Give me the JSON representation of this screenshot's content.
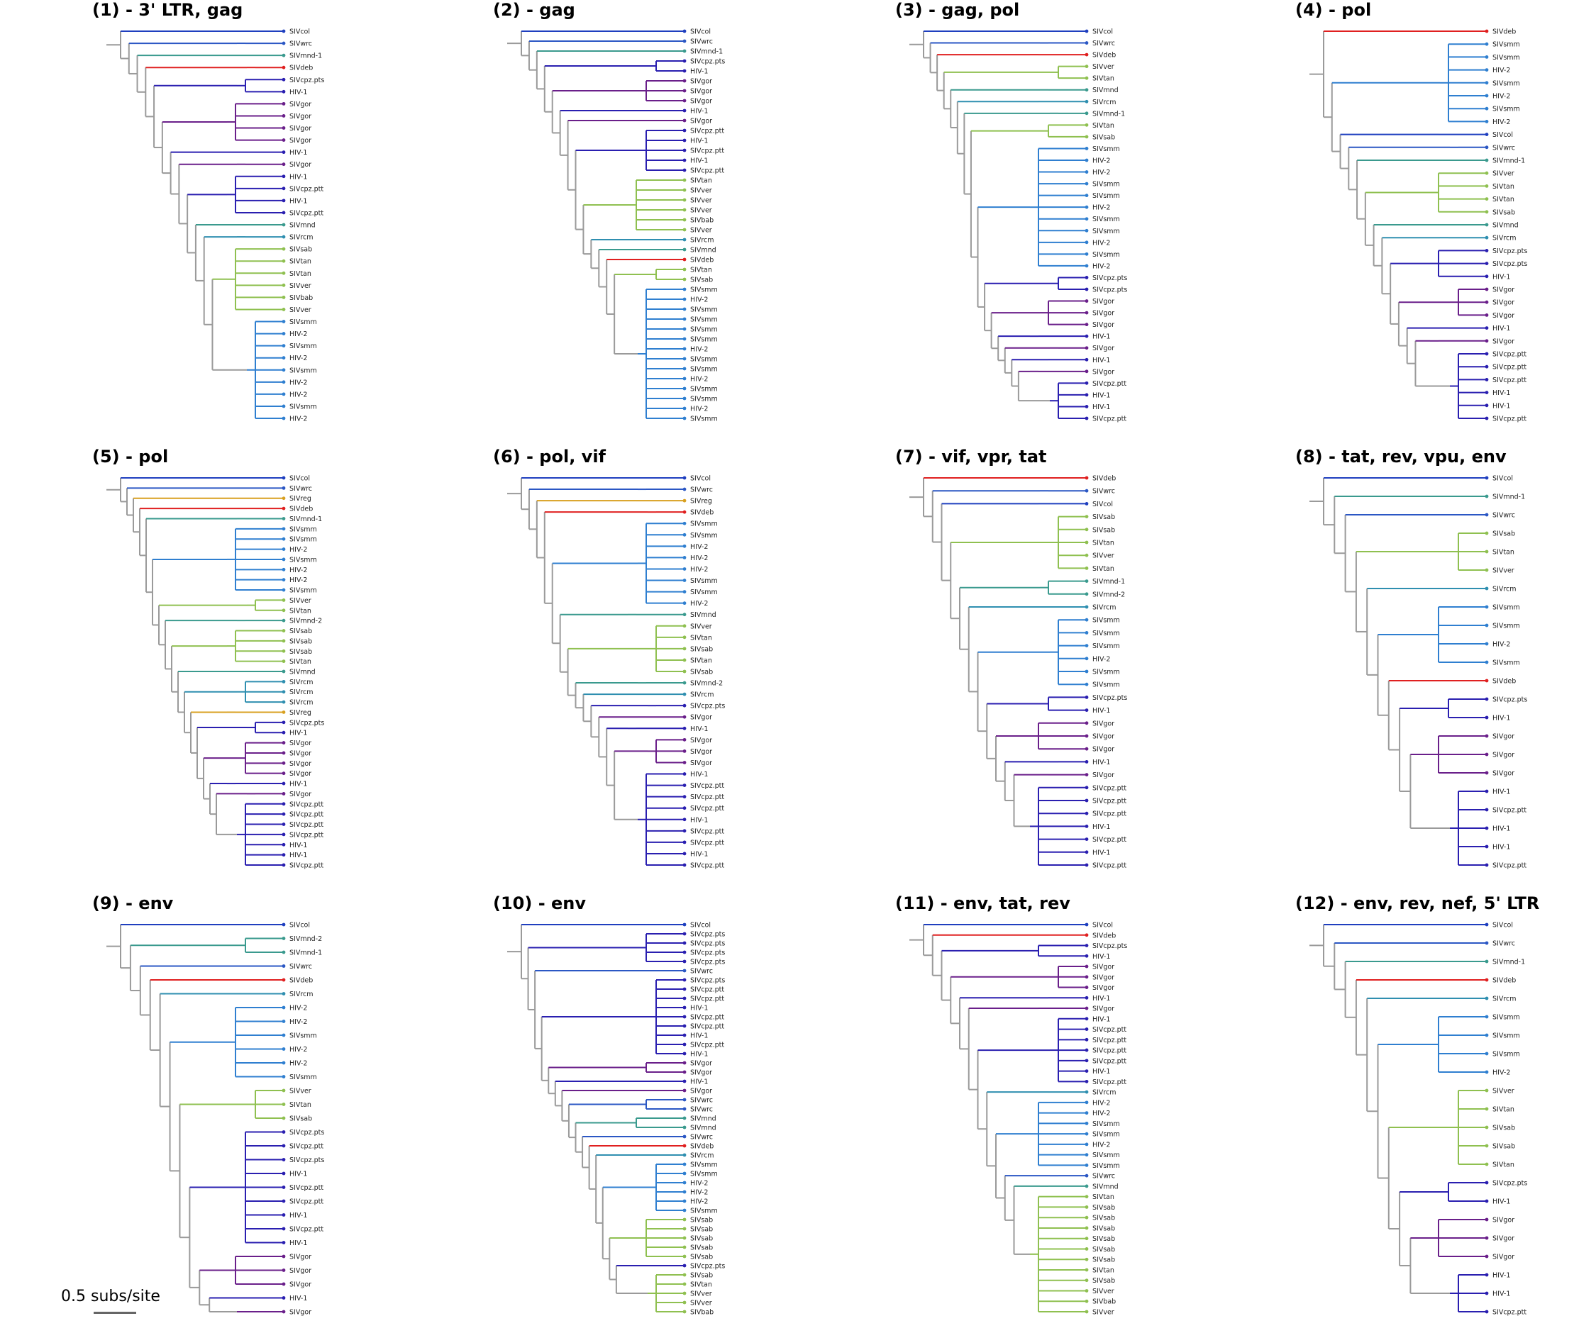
{
  "colors": {
    "SIVcol": "#1f3fbf",
    "SIVwrc": "#2b57c4",
    "SIVmnd": "#3a9a8e",
    "SIVdeb": "#e02020",
    "SIVreg": "#d8a020",
    "SIVver": "#8fc050",
    "SIVtan": "#8fc050",
    "SIVsab": "#8fc050",
    "SIVbab": "#8fc050",
    "SIVrcm": "#2f8fb0",
    "SIVsmm": "#2f7fd0",
    "HIV-2": "#2f7fd0",
    "SIVgor": "#6a1f8a",
    "HIV-1": "#2a1fb0",
    "SIVcpz": "#2a1fb0",
    "backbone": "#9a9a9a"
  },
  "panels": [
    {
      "title": "(1) - 3' LTR, gag",
      "leaves": [
        "SIVcol",
        "SIVwrc",
        "SIVmnd-1",
        "SIVdeb",
        "SIVcpz.pts",
        "HIV-1",
        "SIVgor",
        "SIVgor",
        "SIVgor",
        "SIVgor",
        "HIV-1",
        "SIVgor",
        "HIV-1",
        "SIVcpz.ptt",
        "HIV-1",
        "SIVcpz.ptt",
        "SIVmnd",
        "SIVrcm",
        "SIVsab",
        "SIVtan",
        "SIVtan",
        "SIVver",
        "SIVbab",
        "SIVver",
        "SIVsmm",
        "HIV-2",
        "SIVsmm",
        "HIV-2",
        "SIVsmm",
        "HIV-2",
        "HIV-2",
        "SIVsmm",
        "HIV-2"
      ]
    },
    {
      "title": "(2) - gag",
      "leaves": [
        "SIVcol",
        "SIVwrc",
        "SIVmnd-1",
        "SIVcpz.pts",
        "HIV-1",
        "SIVgor",
        "SIVgor",
        "SIVgor",
        "HIV-1",
        "SIVgor",
        "SIVcpz.ptt",
        "HIV-1",
        "SIVcpz.ptt",
        "HIV-1",
        "SIVcpz.ptt",
        "SIVtan",
        "SIVver",
        "SIVver",
        "SIVver",
        "SIVbab",
        "SIVver",
        "SIVrcm",
        "SIVmnd",
        "SIVdeb",
        "SIVtan",
        "SIVsab",
        "SIVsmm",
        "HIV-2",
        "SIVsmm",
        "SIVsmm",
        "SIVsmm",
        "SIVsmm",
        "HIV-2",
        "SIVsmm",
        "SIVsmm",
        "HIV-2",
        "SIVsmm",
        "SIVsmm",
        "HIV-2",
        "SIVsmm"
      ]
    },
    {
      "title": "(3) - gag, pol",
      "leaves": [
        "SIVcol",
        "SIVwrc",
        "SIVdeb",
        "SIVver",
        "SIVtan",
        "SIVmnd",
        "SIVrcm",
        "SIVmnd-1",
        "SIVtan",
        "SIVsab",
        "SIVsmm",
        "HIV-2",
        "HIV-2",
        "SIVsmm",
        "SIVsmm",
        "HIV-2",
        "SIVsmm",
        "SIVsmm",
        "HIV-2",
        "SIVsmm",
        "HIV-2",
        "SIVcpz.pts",
        "SIVcpz.pts",
        "SIVgor",
        "SIVgor",
        "SIVgor",
        "HIV-1",
        "SIVgor",
        "HIV-1",
        "SIVgor",
        "SIVcpz.ptt",
        "HIV-1",
        "HIV-1",
        "SIVcpz.ptt"
      ]
    },
    {
      "title": "(4) - pol",
      "leaves": [
        "SIVdeb",
        "SIVsmm",
        "SIVsmm",
        "HIV-2",
        "SIVsmm",
        "HIV-2",
        "SIVsmm",
        "HIV-2",
        "SIVcol",
        "SIVwrc",
        "SIVmnd-1",
        "SIVver",
        "SIVtan",
        "SIVtan",
        "SIVsab",
        "SIVmnd",
        "SIVrcm",
        "SIVcpz.pts",
        "SIVcpz.pts",
        "HIV-1",
        "SIVgor",
        "SIVgor",
        "SIVgor",
        "HIV-1",
        "SIVgor",
        "SIVcpz.ptt",
        "SIVcpz.ptt",
        "SIVcpz.ptt",
        "HIV-1",
        "HIV-1",
        "SIVcpz.ptt"
      ]
    },
    {
      "title": "(5) - pol",
      "leaves": [
        "SIVcol",
        "SIVwrc",
        "SIVreg",
        "SIVdeb",
        "SIVmnd-1",
        "SIVsmm",
        "SIVsmm",
        "HIV-2",
        "SIVsmm",
        "HIV-2",
        "HIV-2",
        "SIVsmm",
        "SIVver",
        "SIVtan",
        "SIVmnd-2",
        "SIVsab",
        "SIVsab",
        "SIVsab",
        "SIVtan",
        "SIVmnd",
        "SIVrcm",
        "SIVrcm",
        "SIVrcm",
        "SIVreg",
        "SIVcpz.pts",
        "HIV-1",
        "SIVgor",
        "SIVgor",
        "SIVgor",
        "SIVgor",
        "HIV-1",
        "SIVgor",
        "SIVcpz.ptt",
        "SIVcpz.ptt",
        "SIVcpz.ptt",
        "SIVcpz.ptt",
        "HIV-1",
        "HIV-1",
        "SIVcpz.ptt"
      ]
    },
    {
      "title": "(6) - pol, vif",
      "leaves": [
        "SIVcol",
        "SIVwrc",
        "SIVreg",
        "SIVdeb",
        "SIVsmm",
        "SIVsmm",
        "HIV-2",
        "HIV-2",
        "HIV-2",
        "SIVsmm",
        "SIVsmm",
        "HIV-2",
        "SIVmnd",
        "SIVver",
        "SIVtan",
        "SIVsab",
        "SIVtan",
        "SIVsab",
        "SIVmnd-2",
        "SIVrcm",
        "SIVcpz.pts",
        "SIVgor",
        "HIV-1",
        "SIVgor",
        "SIVgor",
        "SIVgor",
        "HIV-1",
        "SIVcpz.ptt",
        "SIVcpz.ptt",
        "SIVcpz.ptt",
        "HIV-1",
        "SIVcpz.ptt",
        "SIVcpz.ptt",
        "HIV-1",
        "SIVcpz.ptt"
      ]
    },
    {
      "title": "(7) - vif, vpr, tat",
      "leaves": [
        "SIVdeb",
        "SIVwrc",
        "SIVcol",
        "SIVsab",
        "SIVsab",
        "SIVtan",
        "SIVver",
        "SIVtan",
        "SIVmnd-1",
        "SIVmnd-2",
        "SIVrcm",
        "SIVsmm",
        "SIVsmm",
        "SIVsmm",
        "HIV-2",
        "SIVsmm",
        "SIVsmm",
        "SIVcpz.pts",
        "HIV-1",
        "SIVgor",
        "SIVgor",
        "SIVgor",
        "HIV-1",
        "SIVgor",
        "SIVcpz.ptt",
        "SIVcpz.ptt",
        "SIVcpz.ptt",
        "HIV-1",
        "SIVcpz.ptt",
        "HIV-1",
        "SIVcpz.ptt"
      ]
    },
    {
      "title": "(8) - tat, rev, vpu, env",
      "leaves": [
        "SIVcol",
        "SIVmnd-1",
        "SIVwrc",
        "SIVsab",
        "SIVtan",
        "SIVver",
        "SIVrcm",
        "SIVsmm",
        "SIVsmm",
        "HIV-2",
        "SIVsmm",
        "SIVdeb",
        "SIVcpz.pts",
        "HIV-1",
        "SIVgor",
        "SIVgor",
        "SIVgor",
        "HIV-1",
        "SIVcpz.ptt",
        "HIV-1",
        "HIV-1",
        "SIVcpz.ptt"
      ]
    },
    {
      "title": "(9) - env",
      "leaves": [
        "SIVcol",
        "SIVmnd-2",
        "SIVmnd-1",
        "SIVwrc",
        "SIVdeb",
        "SIVrcm",
        "HIV-2",
        "HIV-2",
        "SIVsmm",
        "HIV-2",
        "HIV-2",
        "SIVsmm",
        "SIVver",
        "SIVtan",
        "SIVsab",
        "SIVcpz.pts",
        "SIVcpz.ptt",
        "SIVcpz.pts",
        "HIV-1",
        "SIVcpz.ptt",
        "SIVcpz.ptt",
        "HIV-1",
        "SIVcpz.ptt",
        "HIV-1",
        "SIVgor",
        "SIVgor",
        "SIVgor",
        "HIV-1",
        "SIVgor"
      ]
    },
    {
      "title": "(10) - env",
      "leaves": [
        "SIVcol",
        "SIVcpz.pts",
        "SIVcpz.pts",
        "SIVcpz.pts",
        "SIVcpz.pts",
        "SIVwrc",
        "SIVcpz.pts",
        "SIVcpz.ptt",
        "SIVcpz.ptt",
        "HIV-1",
        "SIVcpz.ptt",
        "SIVcpz.ptt",
        "HIV-1",
        "SIVcpz.ptt",
        "HIV-1",
        "SIVgor",
        "SIVgor",
        "HIV-1",
        "SIVgor",
        "SIVwrc",
        "SIVwrc",
        "SIVmnd",
        "SIVmnd",
        "SIVwrc",
        "SIVdeb",
        "SIVrcm",
        "SIVsmm",
        "SIVsmm",
        "HIV-2",
        "HIV-2",
        "HIV-2",
        "SIVsmm",
        "SIVsab",
        "SIVsab",
        "SIVsab",
        "SIVsab",
        "SIVsab",
        "SIVcpz.pts",
        "SIVsab",
        "SIVtan",
        "SIVver",
        "SIVver",
        "SIVbab"
      ]
    },
    {
      "title": "(11) - env, tat, rev",
      "leaves": [
        "SIVcol",
        "SIVdeb",
        "SIVcpz.pts",
        "HIV-1",
        "SIVgor",
        "SIVgor",
        "SIVgor",
        "HIV-1",
        "SIVgor",
        "HIV-1",
        "SIVcpz.ptt",
        "SIVcpz.ptt",
        "SIVcpz.ptt",
        "SIVcpz.ptt",
        "HIV-1",
        "SIVcpz.ptt",
        "SIVrcm",
        "HIV-2",
        "HIV-2",
        "SIVsmm",
        "SIVsmm",
        "HIV-2",
        "SIVsmm",
        "SIVsmm",
        "SIVwrc",
        "SIVmnd",
        "SIVtan",
        "SIVsab",
        "SIVsab",
        "SIVsab",
        "SIVsab",
        "SIVsab",
        "SIVsab",
        "SIVtan",
        "SIVsab",
        "SIVver",
        "SIVbab",
        "SIVver"
      ]
    },
    {
      "title": "(12) - env, rev, nef, 5' LTR",
      "leaves": [
        "SIVcol",
        "SIVwrc",
        "SIVmnd-1",
        "SIVdeb",
        "SIVrcm",
        "SIVsmm",
        "SIVsmm",
        "SIVsmm",
        "HIV-2",
        "SIVver",
        "SIVtan",
        "SIVsab",
        "SIVsab",
        "SIVtan",
        "SIVcpz.pts",
        "HIV-1",
        "SIVgor",
        "SIVgor",
        "SIVgor",
        "HIV-1",
        "HIV-1",
        "SIVcpz.ptt"
      ]
    }
  ],
  "scale_bar": {
    "label": "0.5 subs/site"
  }
}
